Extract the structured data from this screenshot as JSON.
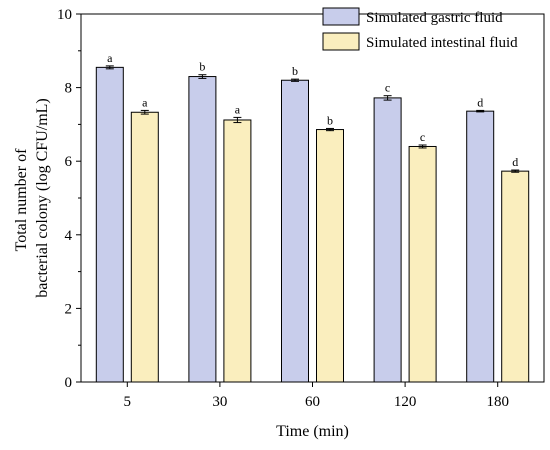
{
  "chart_data": {
    "type": "bar",
    "xlabel": "Time (min)",
    "ylabel_lines": [
      "Total number of",
      "bacterial colony (log CFU/mL)"
    ],
    "ylim": [
      0,
      10
    ],
    "yticks": [
      0,
      2,
      4,
      6,
      8,
      10
    ],
    "categories": [
      "5",
      "30",
      "60",
      "120",
      "180"
    ],
    "legend_position": "top-right",
    "grid": false,
    "series": [
      {
        "name": "Simulated gastric fluid",
        "color": "#c8cdeb",
        "values": [
          8.55,
          8.3,
          8.2,
          7.72,
          7.36
        ],
        "errors": [
          0.04,
          0.05,
          0.03,
          0.06,
          0.02
        ],
        "labels": [
          "a",
          "b",
          "b",
          "c",
          "d"
        ]
      },
      {
        "name": "Simulated intestinal fluid",
        "color": "#faeebe",
        "values": [
          7.33,
          7.12,
          6.86,
          6.4,
          5.73
        ],
        "errors": [
          0.05,
          0.07,
          0.03,
          0.04,
          0.03
        ],
        "labels": [
          "a",
          "a",
          "b",
          "c",
          "d"
        ]
      }
    ]
  }
}
